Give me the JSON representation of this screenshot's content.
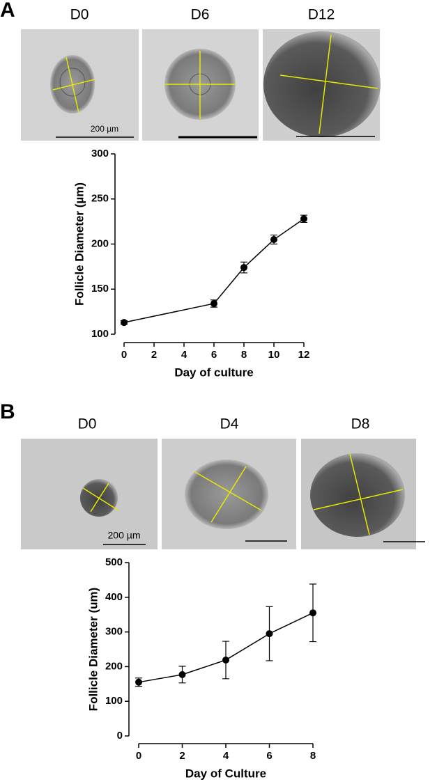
{
  "panels": [
    {
      "label": "A",
      "images": [
        "D0",
        "D6",
        "D12"
      ],
      "scale_label": "200 µm"
    },
    {
      "label": "B",
      "images": [
        "D0",
        "D4",
        "D8"
      ],
      "scale_label": "200 µm"
    }
  ],
  "chart_data": [
    {
      "type": "line",
      "x_label": "Day of culture",
      "y_label": "Follicle Diameter (µm)",
      "x": [
        0,
        6,
        8,
        10,
        12
      ],
      "values": [
        113,
        134,
        174,
        205,
        228
      ],
      "errors": [
        2,
        4,
        6,
        5,
        4
      ],
      "color": "#000000",
      "xlim": [
        0,
        12
      ],
      "xticks": [
        0,
        2,
        4,
        6,
        8,
        10,
        12
      ],
      "ylim": [
        100,
        300
      ],
      "yticks": [
        100,
        150,
        200,
        250,
        300
      ]
    },
    {
      "type": "line",
      "x_label": "Day of  Culture",
      "y_label": "Follicle Diameter (um)",
      "x": [
        0,
        2,
        4,
        6,
        8
      ],
      "values": [
        155,
        177,
        219,
        295,
        355
      ],
      "errors": [
        12,
        24,
        54,
        78,
        83
      ],
      "color": "#000000",
      "xlim": [
        0,
        8
      ],
      "xticks": [
        0,
        2,
        4,
        6,
        8
      ],
      "ylim": [
        0,
        500
      ],
      "yticks": [
        0,
        100,
        200,
        300,
        400,
        500
      ]
    }
  ]
}
